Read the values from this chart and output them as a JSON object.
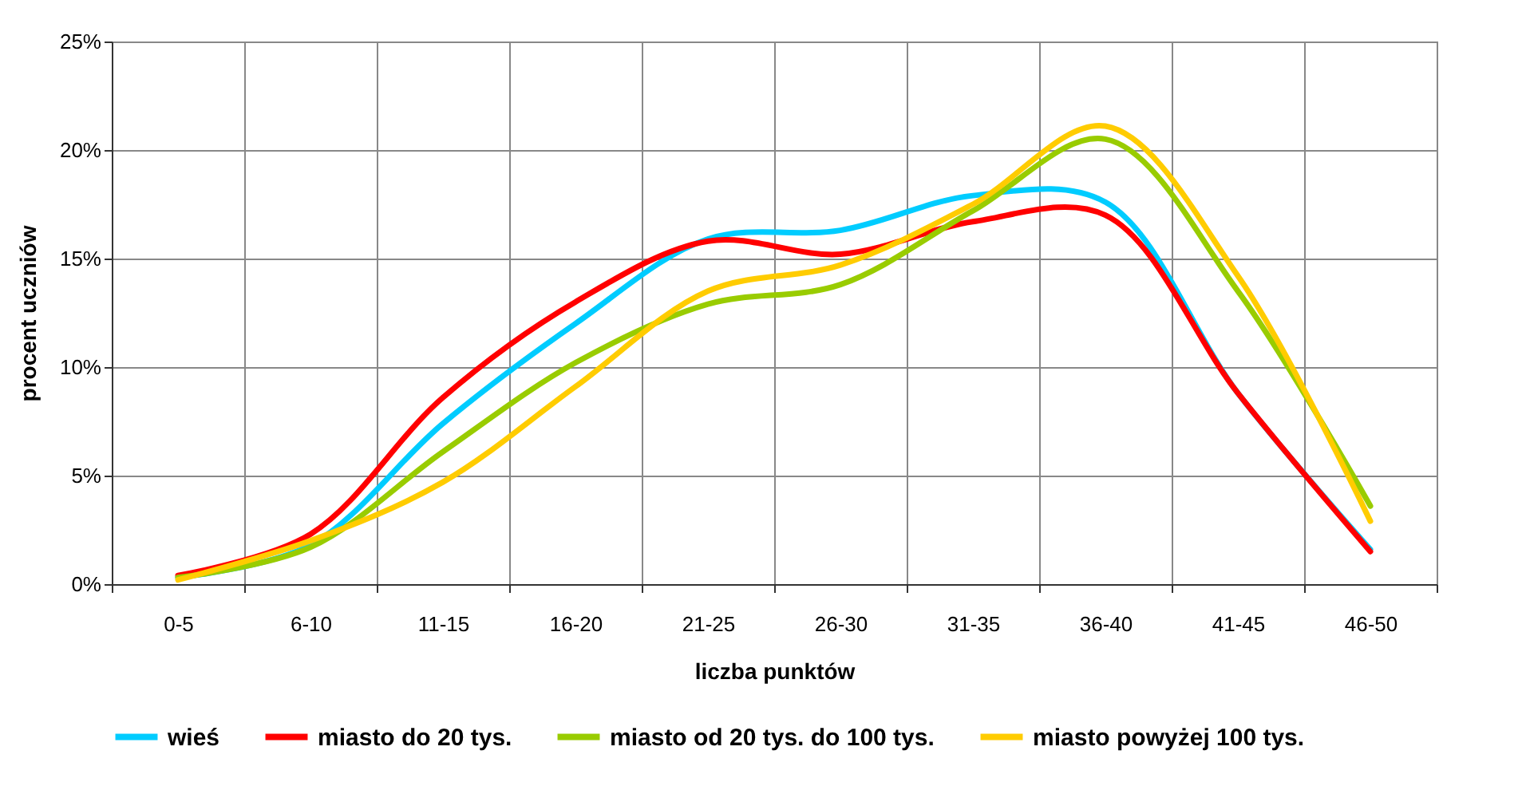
{
  "chart_data": {
    "type": "line",
    "xlabel": "liczba punktów",
    "ylabel": "procent uczniów",
    "categories": [
      "0-5",
      "6-10",
      "11-15",
      "16-20",
      "21-25",
      "26-30",
      "31-35",
      "36-40",
      "41-45",
      "46-50"
    ],
    "series": [
      {
        "name": "wieś",
        "color": "#00ccff",
        "values": [
          0.3,
          1.8,
          7.4,
          12.0,
          15.9,
          16.3,
          17.9,
          17.6,
          8.8,
          1.6
        ]
      },
      {
        "name": "miasto do 20 tys.",
        "color": "#ff0000",
        "values": [
          0.4,
          2.3,
          8.6,
          13.0,
          15.8,
          15.2,
          16.7,
          17.0,
          8.8,
          1.5
        ]
      },
      {
        "name": "miasto od 20 tys. do 100 tys.",
        "color": "#99cc00",
        "values": [
          0.3,
          1.7,
          6.1,
          10.2,
          12.9,
          13.8,
          17.2,
          20.5,
          13.5,
          3.6
        ]
      },
      {
        "name": "miasto powyżej 100 tys.",
        "color": "#ffcc00",
        "values": [
          0.2,
          2.0,
          4.7,
          9.1,
          13.5,
          14.7,
          17.5,
          21.1,
          14.2,
          2.9
        ]
      }
    ],
    "ylim": [
      0,
      25
    ],
    "yticks": [
      {
        "value": 0,
        "label": "0%"
      },
      {
        "value": 5,
        "label": "5%"
      },
      {
        "value": 10,
        "label": "10%"
      },
      {
        "value": 15,
        "label": "15%"
      },
      {
        "value": 20,
        "label": "20%"
      },
      {
        "value": 25,
        "label": "25%"
      }
    ],
    "grid": true,
    "legend": "bottom",
    "marker": "none",
    "line_style": "solid"
  }
}
